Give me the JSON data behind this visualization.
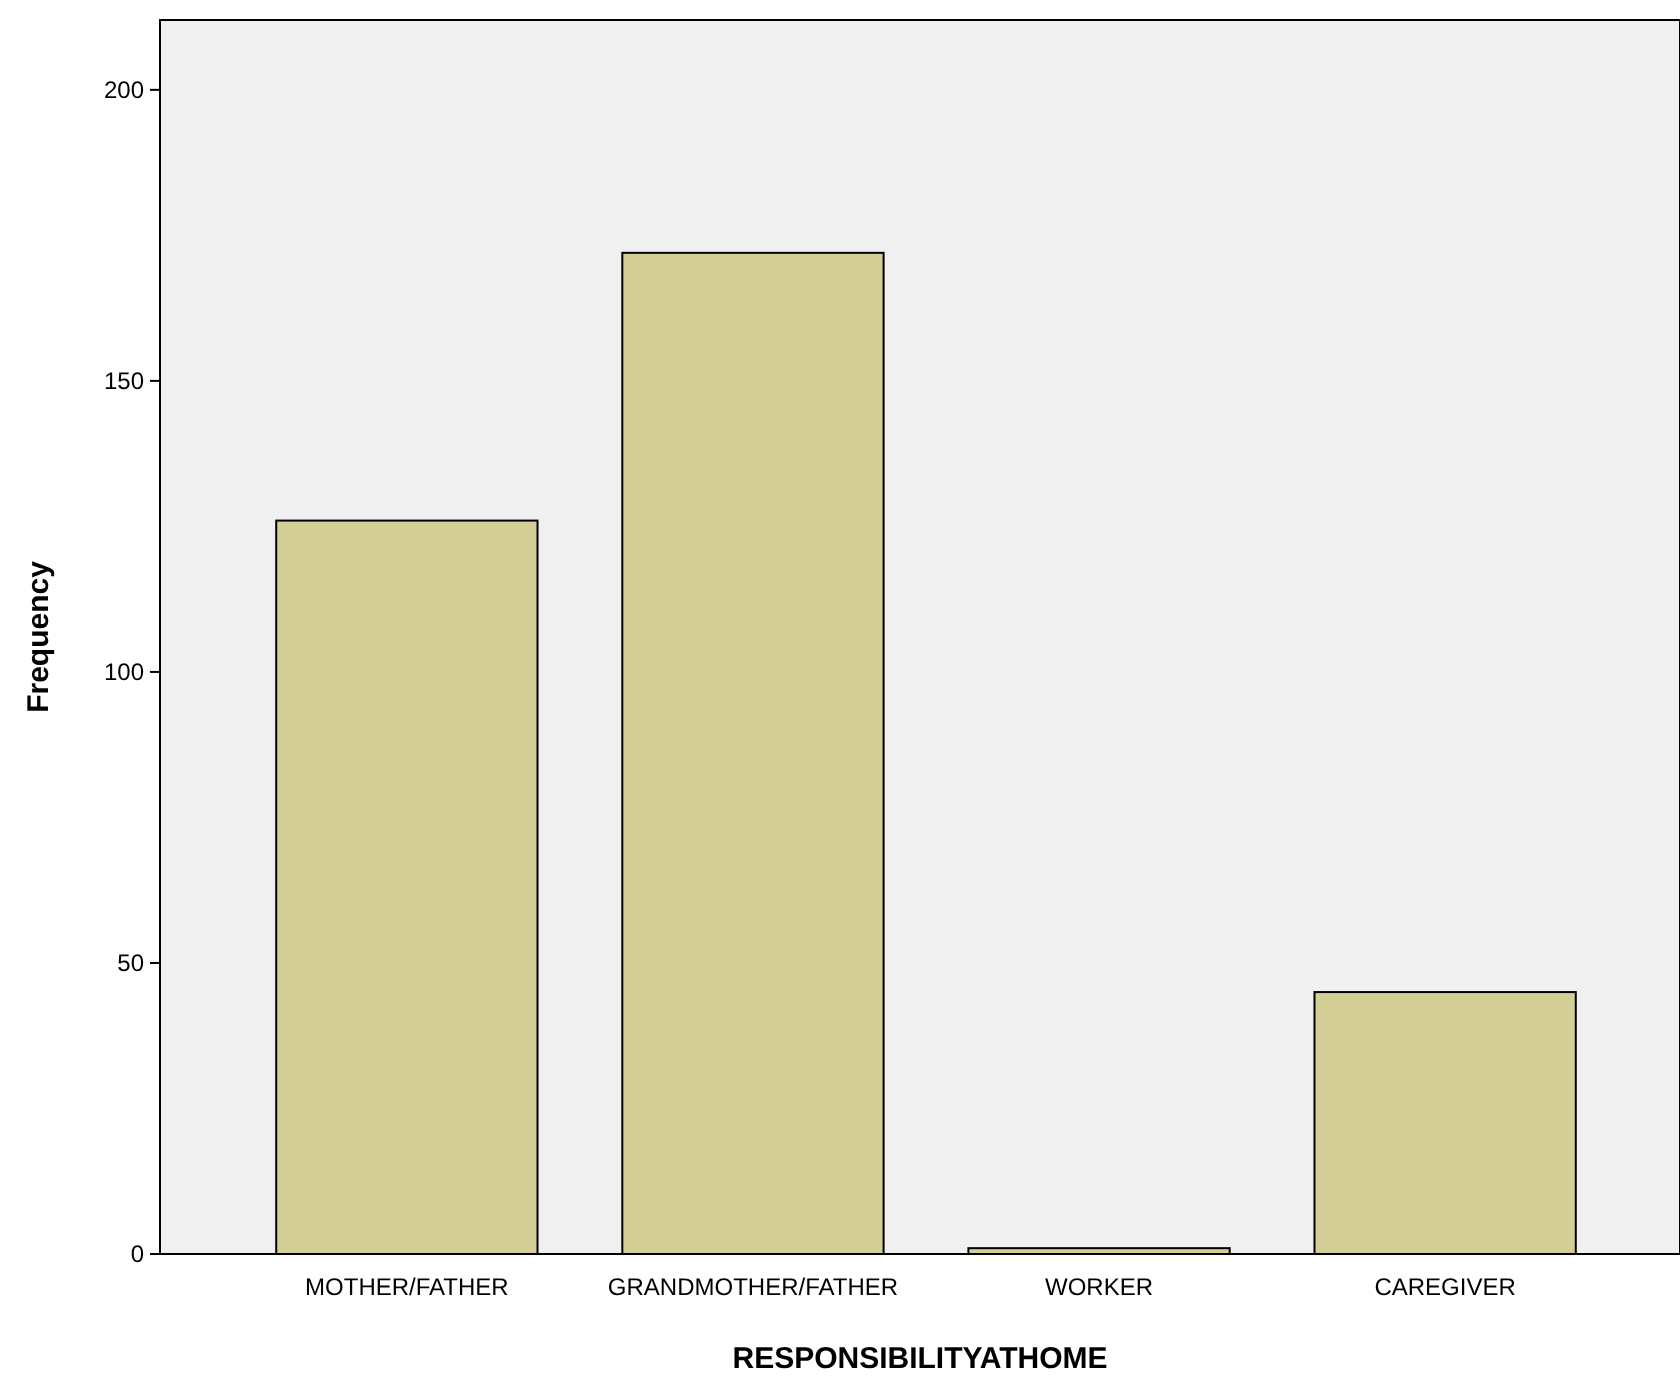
{
  "chart_data": {
    "type": "bar",
    "xlabel": "RESPONSIBILITYATHOME",
    "ylabel": "Frequency",
    "categories": [
      "MOTHER/FATHER",
      "GRANDMOTHER/FATHER",
      "WORKER",
      "CAREGIVER"
    ],
    "values": [
      126,
      172,
      1,
      45
    ],
    "color": "#d3cd96",
    "ylim": [
      0,
      212
    ],
    "yticks": [
      0,
      50,
      100,
      150,
      200
    ],
    "grid": false
  }
}
